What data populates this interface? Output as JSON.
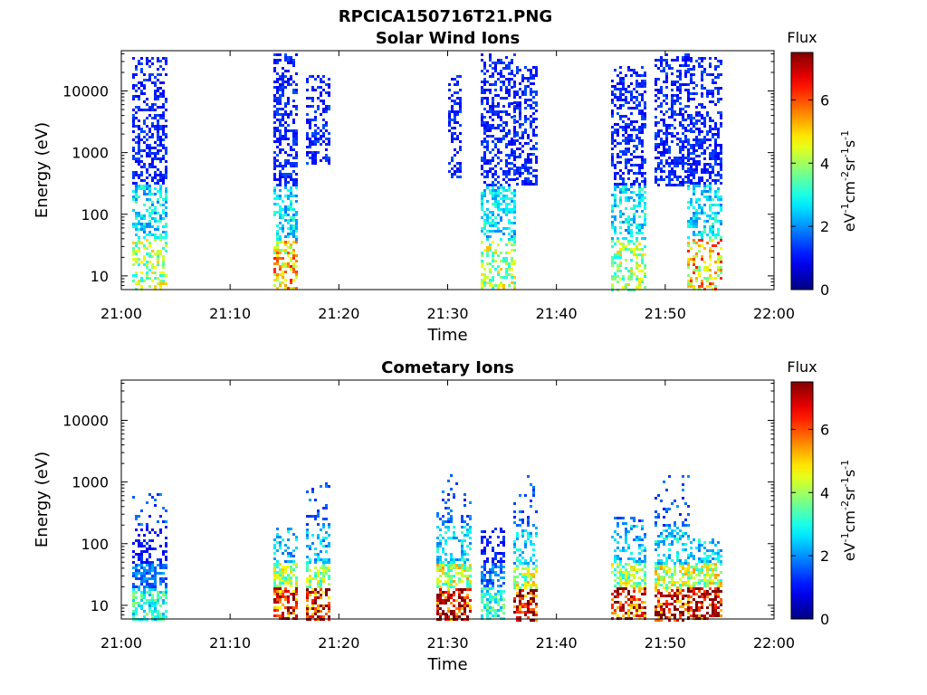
{
  "figure": {
    "title": "RPCICA150716T21.PNG"
  },
  "chart_data": [
    {
      "type": "heatmap",
      "title": "Solar Wind Ions",
      "xlabel": "Time",
      "ylabel": "Energy (eV)",
      "x_ticks": [
        "21:00",
        "21:10",
        "21:20",
        "21:30",
        "21:40",
        "21:50",
        "22:00"
      ],
      "x_range": [
        "21:00",
        "22:00"
      ],
      "y_scale": "log",
      "y_ticks": [
        "10",
        "100",
        "1000",
        "10000"
      ],
      "y_range": [
        6,
        45000
      ],
      "colorbar": {
        "label": "Flux",
        "unit": "eV-1cm-2sr-1s-1",
        "ticks": [
          "0",
          "2",
          "4",
          "6"
        ],
        "range": [
          0,
          7.5
        ],
        "colormap": "jet"
      },
      "bursts": [
        {
          "start": "21:01",
          "end": "21:04",
          "e_min": 6,
          "e_max": 35000,
          "peak_flux": 4
        },
        {
          "start": "21:14",
          "end": "21:16",
          "e_min": 6,
          "e_max": 40000,
          "peak_flux": 5
        },
        {
          "start": "21:17",
          "end": "21:19",
          "e_min": 700,
          "e_max": 20000,
          "peak_flux": 2
        },
        {
          "start": "21:30",
          "end": "21:31",
          "e_min": 400,
          "e_max": 20000,
          "peak_flux": 2
        },
        {
          "start": "21:33",
          "end": "21:36",
          "e_min": 6,
          "e_max": 40000,
          "peak_flux": 4
        },
        {
          "start": "21:36",
          "end": "21:38",
          "e_min": 300,
          "e_max": 25000,
          "peak_flux": 2
        },
        {
          "start": "21:45",
          "end": "21:48",
          "e_min": 6,
          "e_max": 25000,
          "peak_flux": 4
        },
        {
          "start": "21:49",
          "end": "21:52",
          "e_min": 300,
          "e_max": 40000,
          "peak_flux": 2
        },
        {
          "start": "21:52",
          "end": "21:55",
          "e_min": 6,
          "e_max": 35000,
          "peak_flux": 5
        }
      ]
    },
    {
      "type": "heatmap",
      "title": "Cometary Ions",
      "xlabel": "Time",
      "ylabel": "Energy (eV)",
      "x_ticks": [
        "21:00",
        "21:10",
        "21:20",
        "21:30",
        "21:40",
        "21:50",
        "22:00"
      ],
      "x_range": [
        "21:00",
        "22:00"
      ],
      "y_scale": "log",
      "y_ticks": [
        "10",
        "100",
        "1000",
        "10000"
      ],
      "y_range": [
        6,
        45000
      ],
      "colorbar": {
        "label": "Flux",
        "unit": "eV-1cm-2sr-1s-1",
        "ticks": [
          "0",
          "2",
          "4",
          "6"
        ],
        "range": [
          0,
          7.5
        ],
        "colormap": "jet"
      },
      "bursts": [
        {
          "start": "21:01",
          "end": "21:04",
          "e_min": 6,
          "e_max": 650,
          "peak_flux": 3
        },
        {
          "start": "21:14",
          "end": "21:16",
          "e_min": 6,
          "e_max": 200,
          "peak_flux": 6.5
        },
        {
          "start": "21:17",
          "end": "21:19",
          "e_min": 6,
          "e_max": 1000,
          "peak_flux": 6.5
        },
        {
          "start": "21:29",
          "end": "21:32",
          "e_min": 6,
          "e_max": 1500,
          "peak_flux": 7
        },
        {
          "start": "21:33",
          "end": "21:35",
          "e_min": 6,
          "e_max": 200,
          "peak_flux": 3
        },
        {
          "start": "21:36",
          "end": "21:38",
          "e_min": 6,
          "e_max": 1300,
          "peak_flux": 7
        },
        {
          "start": "21:45",
          "end": "21:48",
          "e_min": 6,
          "e_max": 300,
          "peak_flux": 6.5
        },
        {
          "start": "21:49",
          "end": "21:52",
          "e_min": 6,
          "e_max": 1300,
          "peak_flux": 7
        },
        {
          "start": "21:52",
          "end": "21:55",
          "e_min": 6,
          "e_max": 120,
          "peak_flux": 7
        }
      ]
    }
  ]
}
